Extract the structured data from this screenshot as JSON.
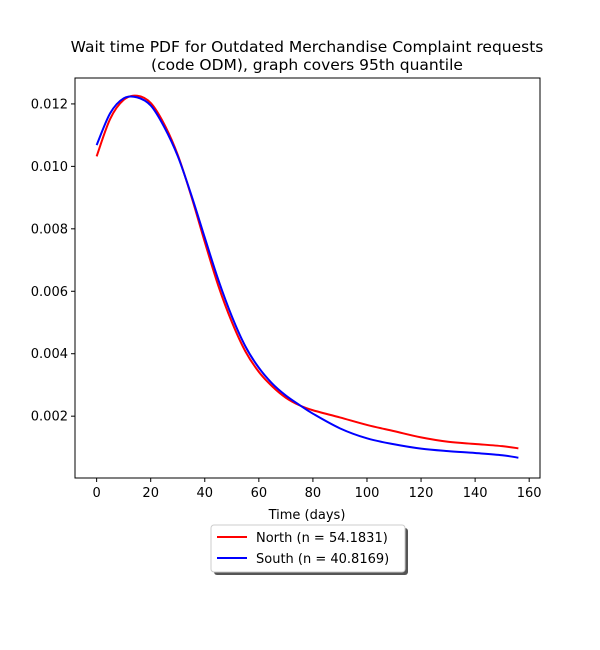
{
  "chart_data": {
    "type": "line",
    "title_lines": [
      "Wait time PDF for Outdated Merchandise Complaint  requests",
      "(code ODM), graph covers 95th quantile"
    ],
    "xlabel": "Time (days)",
    "ylabel": "",
    "xlim": [
      -8,
      164
    ],
    "ylim": [
      2e-05,
      0.01283
    ],
    "xticks": [
      0,
      20,
      40,
      60,
      80,
      100,
      120,
      140,
      160
    ],
    "yticks": [
      0.002,
      0.004,
      0.006,
      0.008,
      0.01,
      0.012
    ],
    "ytick_labels": [
      "0.002",
      "0.004",
      "0.006",
      "0.008",
      "0.010",
      "0.012"
    ],
    "grid": false,
    "legend_position": "below-center",
    "series": [
      {
        "name": "North (n = 54.1831)",
        "color": "#ff0000",
        "x": [
          0,
          5,
          10,
          15,
          20,
          25,
          30,
          35,
          40,
          45,
          50,
          55,
          60,
          65,
          70,
          75,
          80,
          90,
          100,
          110,
          120,
          130,
          140,
          150,
          156
        ],
        "y": [
          0.01032,
          0.01152,
          0.01213,
          0.01226,
          0.01203,
          0.01135,
          0.01037,
          0.00905,
          0.00758,
          0.00618,
          0.00502,
          0.00408,
          0.00342,
          0.00295,
          0.00259,
          0.00235,
          0.00219,
          0.00196,
          0.00172,
          0.00152,
          0.00132,
          0.00118,
          0.00111,
          0.00104,
          0.00097
        ]
      },
      {
        "name": "South (n = 40.8169)",
        "color": "#0000ff",
        "x": [
          0,
          5,
          10,
          15,
          20,
          25,
          30,
          35,
          40,
          45,
          50,
          55,
          60,
          65,
          70,
          75,
          80,
          90,
          100,
          110,
          120,
          130,
          140,
          150,
          156
        ],
        "y": [
          0.01068,
          0.0117,
          0.01218,
          0.01221,
          0.01195,
          0.01126,
          0.01033,
          0.00909,
          0.00772,
          0.00637,
          0.0052,
          0.00424,
          0.00355,
          0.00304,
          0.00266,
          0.00236,
          0.00208,
          0.00161,
          0.00129,
          0.0011,
          0.00096,
          0.00088,
          0.00082,
          0.00075,
          0.00067
        ]
      }
    ]
  }
}
